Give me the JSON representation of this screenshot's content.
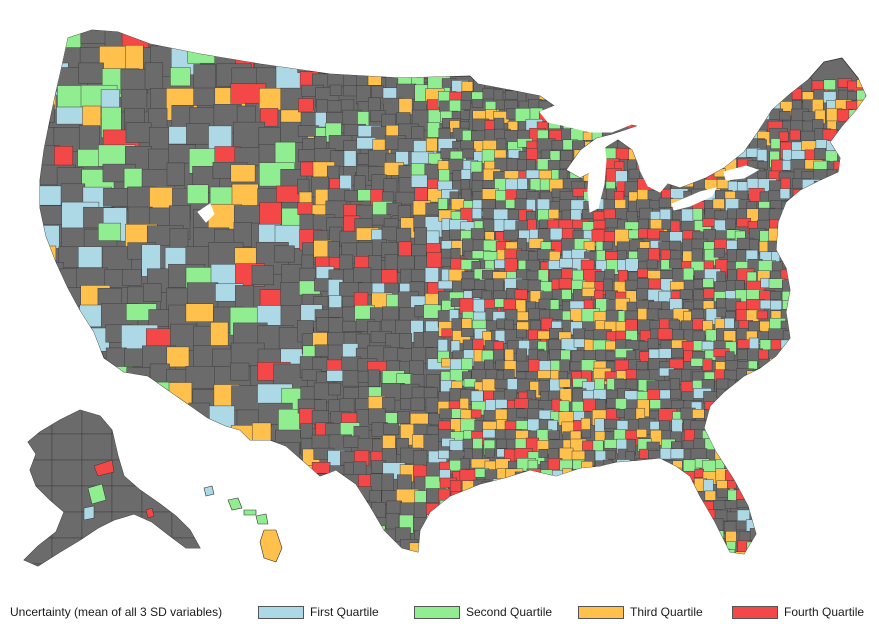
{
  "map": {
    "title": "",
    "base_color": "#6b6b6b",
    "border_color": "#333333",
    "regions": [
      "contiguous-us",
      "alaska",
      "hawaii"
    ]
  },
  "legend": {
    "title": "Uncertainty (mean of all 3 SD variables)",
    "items": [
      {
        "label": "First Quartile",
        "color": "#add8e6"
      },
      {
        "label": "Second Quartile",
        "color": "#90ee90"
      },
      {
        "label": "Third Quartile",
        "color": "#ffc04c"
      },
      {
        "label": "Fourth Quartile",
        "color": "#f44747"
      }
    ]
  }
}
